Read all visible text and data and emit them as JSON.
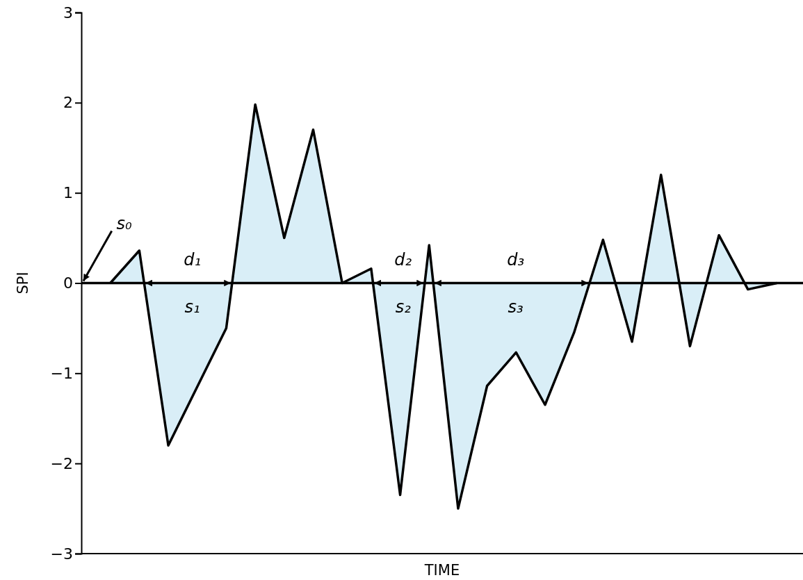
{
  "chart_data": {
    "type": "area",
    "xlabel": "TIME",
    "ylabel": "SPI",
    "categories": [
      null,
      null,
      null,
      null,
      null,
      null,
      null,
      null,
      null,
      null,
      null,
      null,
      null,
      null,
      null,
      null,
      null,
      null,
      null,
      null,
      null,
      null,
      null,
      null
    ],
    "series": [
      {
        "color": "#d9eef7",
        "values": [
          0,
          0.36,
          -1.8,
          -1.15,
          -0.5,
          1.98,
          0.5,
          1.7,
          0,
          0.16,
          -2.35,
          0.42,
          -2.5,
          -1.14,
          -0.77,
          -1.35,
          -0.55,
          0.48,
          -0.65,
          1.2,
          -0.7,
          0.53,
          -0.07,
          0
        ]
      }
    ],
    "ylim": [
      -3,
      3
    ],
    "yticks": [
      {
        "value": -3,
        "label": "−3"
      },
      {
        "value": -2,
        "label": "−2"
      },
      {
        "value": -1,
        "label": "−1"
      },
      0,
      1,
      2,
      3
    ],
    "tick_labels": "y",
    "ref_lines": [
      {
        "axis": "y",
        "value": 0,
        "color": "#000000"
      }
    ],
    "annotations": [
      "s₀",
      "d₁",
      "s₁",
      "d₂",
      "s₂",
      "d₃",
      "s₃"
    ]
  }
}
